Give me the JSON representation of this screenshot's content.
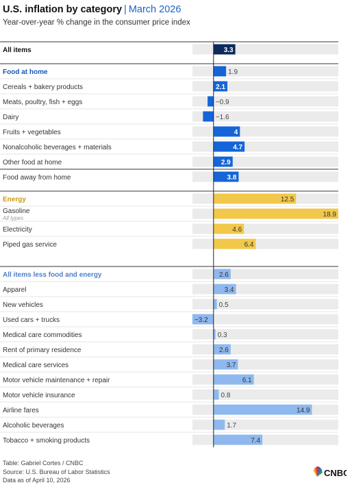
{
  "header": {
    "title": "U.S. inflation by category",
    "separator": "|",
    "date": "March 2026",
    "subtitle": "Year-over-year % change in the consumer price index"
  },
  "colors": {
    "all_items": "#0d2a5c",
    "food": "#1565d8",
    "food_label": "#1a56b8",
    "energy": "#f2c84b",
    "energy_label": "#c99a1a",
    "core": "#8fb8ee",
    "core_label": "#4f7fc8",
    "track": "#ebebeb",
    "divider": "#333333",
    "row_line": "#dddddd"
  },
  "chart_data": {
    "type": "bar",
    "orientation": "horizontal",
    "title": "U.S. inflation by category",
    "subtitle": "Year-over-year % change in the consumer price index",
    "xlim": [
      -3.2,
      18.9
    ],
    "groups": [
      {
        "id": "all",
        "rows": [
          {
            "label": "All items",
            "value": 3.3,
            "header": true
          }
        ]
      },
      {
        "id": "food",
        "rows": [
          {
            "label": "Food at home",
            "value": 1.9,
            "header": true
          },
          {
            "label": "Cereals + bakery products",
            "value": 2.1
          },
          {
            "label": "Meats, poultry, fish + eggs",
            "value": -0.9
          },
          {
            "label": "Dairy",
            "value": -1.6
          },
          {
            "label": "Fruits + vegetables",
            "value": 4
          },
          {
            "label": "Nonalcoholic beverages + materials",
            "value": 4.7
          },
          {
            "label": "Other food at home",
            "value": 2.9
          },
          {
            "label": "Food away from home",
            "value": 3.8,
            "separated": true
          }
        ]
      },
      {
        "id": "energy",
        "rows": [
          {
            "label": "Energy",
            "value": 12.5,
            "header": true
          },
          {
            "label": "Gasoline",
            "sublabel": "All types",
            "value": 18.9
          },
          {
            "label": "Electricity",
            "value": 4.6
          },
          {
            "label": "Piped gas service",
            "value": 6.4
          }
        ]
      },
      {
        "id": "core",
        "rows": [
          {
            "label": "All items less food and energy",
            "value": 2.6,
            "header": true
          },
          {
            "label": "Apparel",
            "value": 3.4
          },
          {
            "label": "New vehicles",
            "value": 0.5
          },
          {
            "label": "Used cars + trucks",
            "value": -3.2
          },
          {
            "label": "Medical care commodities",
            "value": 0.3
          },
          {
            "label": "Rent of primary residence",
            "value": 2.6
          },
          {
            "label": "Medical care services",
            "value": 3.7
          },
          {
            "label": "Motor vehicle maintenance + repair",
            "value": 6.1
          },
          {
            "label": "Motor vehicle insurance",
            "value": 0.8
          },
          {
            "label": "Airline fares",
            "value": 14.9
          },
          {
            "label": "Alcoholic beverages",
            "value": 1.7
          },
          {
            "label": "Tobacco + smoking products",
            "value": 7.4
          }
        ]
      }
    ]
  },
  "footer": {
    "line1": "Table: Gabriel Cortes / CNBC",
    "line2": "Source: U.S. Bureau of Labor Statistics",
    "line3": "Data as of April 10, 2026",
    "logo_text": "CNBC"
  }
}
